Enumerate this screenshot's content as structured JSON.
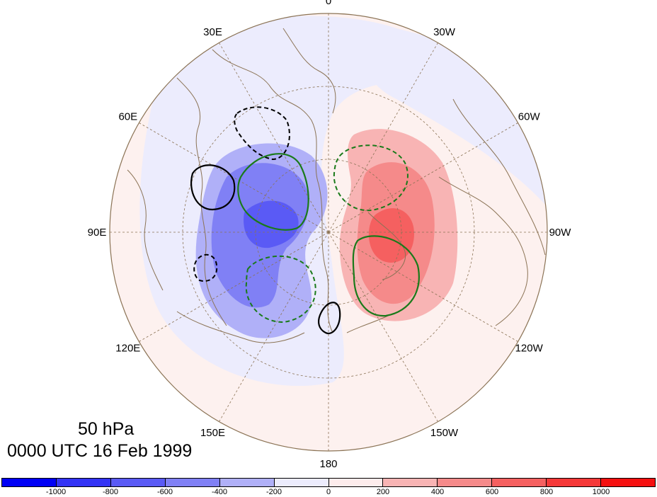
{
  "map": {
    "projection": "north-polar-stereographic",
    "longitude_labels": [
      "0",
      "30W",
      "60W",
      "90W",
      "120W",
      "150W",
      "180",
      "150E",
      "120E",
      "90E",
      "60E",
      "30E"
    ]
  },
  "titles": {
    "level": "50 hPa",
    "time": "0000 UTC 16 Feb 1999"
  },
  "colorbar": {
    "colors": [
      "#0000f5",
      "#3333f5",
      "#5a5af5",
      "#8080f5",
      "#b0b0f8",
      "#ececfd",
      "#fdecec",
      "#f8b4b4",
      "#f58a8a",
      "#f56060",
      "#f53838",
      "#f51010"
    ],
    "labels": [
      "-1000",
      "-800",
      "-600",
      "-400",
      "-200",
      "0",
      "200",
      "400",
      "600",
      "800",
      "1000"
    ]
  },
  "legend": {
    "negative_contour": "#000000",
    "positive_contour": "#1a7a1a",
    "map_lines": "#8b7355"
  }
}
